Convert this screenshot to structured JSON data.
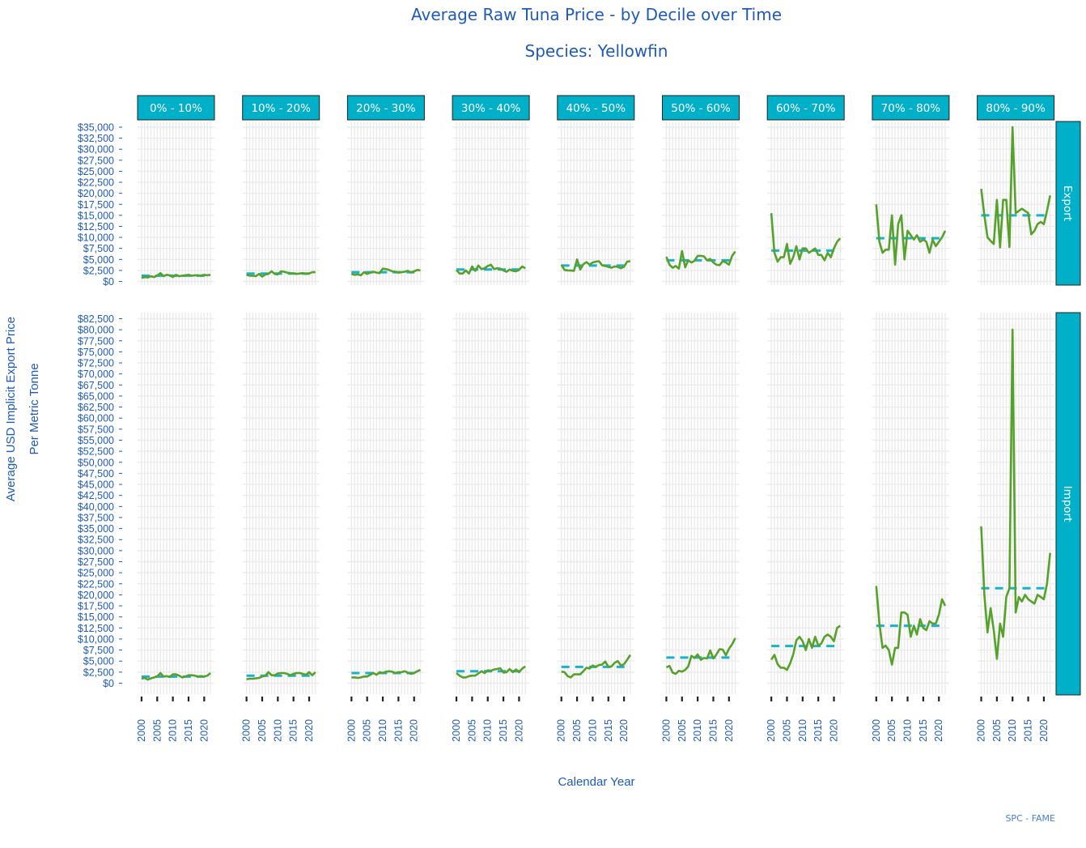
{
  "chart_data": {
    "type": "line",
    "title": "Average Raw Tuna Price - by Decile over Time",
    "subtitle": "Species: Yellowfin",
    "xlabel": "Calendar Year",
    "ylabel_line1": "Average USD Implicit Export Price",
    "ylabel_line2": "Per Metric Tonne",
    "credit": "SPC - FAME",
    "colors": {
      "line": "#56a12b",
      "mean": "#1ab1cf",
      "strip": "#00b0c8",
      "text": "#1f5bb5",
      "grid": "#ebebeb"
    },
    "grid": true,
    "x": [
      2000,
      2001,
      2002,
      2003,
      2004,
      2005,
      2006,
      2007,
      2008,
      2009,
      2010,
      2011,
      2012,
      2013,
      2014,
      2015,
      2016,
      2017,
      2018,
      2019,
      2020,
      2021,
      2022
    ],
    "x_ticks": [
      2000,
      2005,
      2010,
      2015,
      2020
    ],
    "x_tick_labels": [
      "2000",
      "2005",
      "2010",
      "2015",
      "2020"
    ],
    "x_range": [
      1999.5,
      2022.5
    ],
    "deciles": [
      "0% - 10%",
      "10% - 20%",
      "20% - 30%",
      "30% - 40%",
      "40% - 50%",
      "50% - 60%",
      "60% - 70%",
      "70% - 80%",
      "80% - 90%"
    ],
    "rows": [
      {
        "label": "Export",
        "ylim": [
          0,
          35000
        ],
        "y_ticks": [
          0,
          2500,
          5000,
          7500,
          10000,
          12500,
          15000,
          17500,
          20000,
          22500,
          25000,
          27500,
          30000,
          32500,
          35000
        ],
        "y_tick_labels": [
          "$0",
          "$2,500",
          "$5,000",
          "$7,500",
          "$10,000",
          "$12,500",
          "$15,000",
          "$17,500",
          "$20,000",
          "$22,500",
          "$25,000",
          "$27,500",
          "$30,000",
          "$32,500",
          "$35,000"
        ],
        "panels": [
          {
            "mean": 1300,
            "values": [
              800,
              1000,
              900,
              1200,
              1000,
              1300,
              1900,
              1200,
              1500,
              1400,
              1000,
              1500,
              1200,
              1300,
              1400,
              1500,
              1300,
              1400,
              1400,
              1300,
              1500,
              1400,
              1500
            ]
          },
          {
            "mean": 1800,
            "values": [
              1500,
              1300,
              1300,
              1200,
              1700,
              1100,
              1600,
              1700,
              2300,
              1700,
              1600,
              2300,
              2200,
              2000,
              1900,
              1800,
              1700,
              1800,
              1900,
              1700,
              1800,
              2100,
              2100
            ]
          },
          {
            "mean": 2100,
            "values": [
              1700,
              1500,
              1600,
              1400,
              2100,
              1700,
              2000,
              2200,
              2000,
              1900,
              2900,
              2800,
              2600,
              2300,
              2200,
              2000,
              2100,
              2200,
              2400,
              2000,
              2300,
              2600,
              2500
            ]
          },
          {
            "mean": 2700,
            "values": [
              2600,
              1800,
              1800,
              2500,
              1800,
              3400,
              2400,
              3600,
              2800,
              3000,
              3500,
              3800,
              2800,
              3000,
              2900,
              2500,
              2200,
              2700,
              2400,
              2300,
              2600,
              3400,
              3000
            ]
          },
          {
            "mean": 3600,
            "values": [
              3800,
              2600,
              2500,
              2500,
              2400,
              5000,
              2700,
              3900,
              4400,
              3800,
              4300,
              4500,
              4600,
              3700,
              3500,
              3300,
              3100,
              3400,
              3300,
              3000,
              3300,
              4500,
              4600
            ]
          },
          {
            "mean": 4800,
            "values": [
              5600,
              3800,
              3100,
              3500,
              2900,
              6900,
              3200,
              4800,
              4300,
              4700,
              5800,
              5800,
              5700,
              4800,
              5100,
              4300,
              3800,
              3700,
              4600,
              4300,
              3800,
              5800,
              6800
            ]
          },
          {
            "mean": 7000,
            "values": [
              15500,
              6500,
              4500,
              5500,
              5500,
              8500,
              4000,
              5500,
              8000,
              5000,
              7500,
              7500,
              6500,
              7000,
              7500,
              6000,
              6000,
              4800,
              6500,
              5500,
              7500,
              9000,
              9800
            ]
          },
          {
            "mean": 9800,
            "values": [
              17500,
              9000,
              6500,
              7200,
              7200,
              15000,
              3800,
              13000,
              15000,
              5000,
              11500,
              10500,
              9500,
              10500,
              9000,
              9500,
              9000,
              6500,
              9500,
              8000,
              9000,
              10000,
              11500
            ]
          },
          {
            "mean": 15000,
            "values": [
              21000,
              15000,
              10000,
              9200,
              8500,
              18500,
              7700,
              18500,
              18500,
              7800,
              35000,
              15500,
              16000,
              16500,
              16000,
              15500,
              10700,
              11500,
              13000,
              13500,
              13000,
              16000,
              19500
            ]
          }
        ]
      },
      {
        "label": "Import",
        "ylim": [
          0,
          82500
        ],
        "y_ticks": [
          0,
          2500,
          5000,
          7500,
          10000,
          12500,
          15000,
          17500,
          20000,
          22500,
          25000,
          27500,
          30000,
          32500,
          35000,
          37500,
          40000,
          42500,
          45000,
          47500,
          50000,
          52500,
          55000,
          57500,
          60000,
          62500,
          65000,
          67500,
          70000,
          72500,
          75000,
          77500,
          80000,
          82500
        ],
        "y_tick_labels": [
          "$0",
          "$2,500",
          "$5,000",
          "$7,500",
          "$10,000",
          "$12,500",
          "$15,000",
          "$17,500",
          "$20,000",
          "$22,500",
          "$25,000",
          "$27,500",
          "$30,000",
          "$32,500",
          "$35,000",
          "$37,500",
          "$40,000",
          "$42,500",
          "$45,000",
          "$47,500",
          "$50,000",
          "$52,500",
          "$55,000",
          "$57,500",
          "$60,000",
          "$62,500",
          "$65,000",
          "$67,500",
          "$70,000",
          "$72,500",
          "$75,000",
          "$77,500",
          "$80,000",
          "$82,500"
        ],
        "panels": [
          {
            "mean": 1500,
            "values": [
              1000,
              1200,
              800,
              1100,
              1300,
              1500,
              2300,
              1500,
              1600,
              1400,
              2000,
              2000,
              1700,
              1300,
              1500,
              1800,
              1800,
              1700,
              1500,
              1600,
              1500,
              1700,
              2300
            ]
          },
          {
            "mean": 1700,
            "values": [
              900,
              1000,
              1000,
              1100,
              1200,
              1500,
              1700,
              2500,
              1800,
              1800,
              2200,
              2300,
              2300,
              2100,
              1800,
              2100,
              2300,
              2300,
              2100,
              1900,
              2500,
              1800,
              2500
            ]
          },
          {
            "mean": 2300,
            "values": [
              1300,
              1300,
              1200,
              1300,
              1500,
              1500,
              1900,
              2300,
              1900,
              2500,
              2300,
              2600,
              2700,
              2600,
              2300,
              2500,
              2500,
              2700,
              2400,
              2100,
              2300,
              2700,
              3000
            ]
          },
          {
            "mean": 2700,
            "values": [
              2300,
              1700,
              1300,
              1300,
              1600,
              1700,
              1700,
              2200,
              2700,
              2300,
              2900,
              2800,
              3100,
              3200,
              3400,
              2400,
              2500,
              3200,
              2500,
              3100,
              2500,
              3300,
              3800
            ]
          },
          {
            "mean": 3700,
            "values": [
              2600,
              2500,
              1600,
              1300,
              2000,
              2000,
              2000,
              2700,
              3500,
              3300,
              4000,
              3700,
              4100,
              4200,
              4900,
              3700,
              3800,
              4600,
              5000,
              4000,
              4300,
              5300,
              6400
            ]
          },
          {
            "mean": 5800,
            "values": [
              3600,
              3900,
              2400,
              2100,
              2800,
              2600,
              3000,
              3800,
              6200,
              5700,
              6500,
              5300,
              5700,
              5600,
              7400,
              5600,
              6500,
              7700,
              7600,
              6300,
              7800,
              8800,
              10200
            ]
          },
          {
            "mean": 8400,
            "values": [
              5300,
              6400,
              4300,
              3500,
              3500,
              3000,
              4500,
              6500,
              9700,
              10500,
              9500,
              7500,
              10000,
              8000,
              10500,
              8500,
              9000,
              10500,
              11000,
              10500,
              9500,
              12500,
              13000
            ]
          },
          {
            "mean": 13000,
            "values": [
              22000,
              13500,
              8000,
              8500,
              7500,
              4200,
              8000,
              8000,
              16000,
              16000,
              15500,
              10500,
              13000,
              11000,
              14500,
              12500,
              12000,
              14000,
              13500,
              13500,
              15500,
              19000,
              17500
            ]
          },
          {
            "mean": 21500,
            "values": [
              35500,
              20000,
              11500,
              17000,
              12000,
              5500,
              13500,
              10500,
              19500,
              21500,
              80000,
              16000,
              19500,
              18500,
              20000,
              19000,
              18500,
              18000,
              20000,
              19500,
              19000,
              22500,
              29500
            ]
          }
        ]
      }
    ]
  }
}
